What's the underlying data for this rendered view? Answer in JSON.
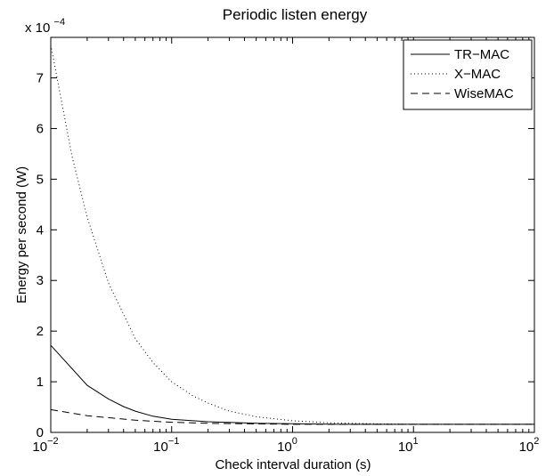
{
  "chart_data": {
    "type": "line",
    "title": "Periodic listen energy",
    "xlabel": "Check interval duration (s)",
    "ylabel": "Energy per second (W)",
    "x_scale": "log",
    "xlim": [
      0.01,
      100
    ],
    "ylim": [
      0,
      0.00078
    ],
    "y_multiplier_label": {
      "base": "x 10",
      "exponent": "−4"
    },
    "x_ticks": [
      {
        "value": 0.01,
        "base": "10",
        "exp": "−2"
      },
      {
        "value": 0.1,
        "base": "10",
        "exp": "−1"
      },
      {
        "value": 1,
        "base": "10",
        "exp": "0"
      },
      {
        "value": 10,
        "base": "10",
        "exp": "1"
      },
      {
        "value": 100,
        "base": "10",
        "exp": "2"
      }
    ],
    "y_ticks": [
      {
        "value": 0,
        "label": "0"
      },
      {
        "value": 0.0001,
        "label": "1"
      },
      {
        "value": 0.0002,
        "label": "2"
      },
      {
        "value": 0.0003,
        "label": "3"
      },
      {
        "value": 0.0004,
        "label": "4"
      },
      {
        "value": 0.0005,
        "label": "5"
      },
      {
        "value": 0.0006,
        "label": "6"
      },
      {
        "value": 0.0007,
        "label": "7"
      }
    ],
    "grid": false,
    "legend_position": "top-right",
    "series": [
      {
        "name": "TR−MAC",
        "style": "solid",
        "x": [
          0.01,
          0.02,
          0.03,
          0.04,
          0.05,
          0.07,
          0.1,
          0.2,
          0.5,
          1,
          2,
          5,
          10,
          100
        ],
        "y": [
          0.000172,
          9.3e-05,
          6.6e-05,
          5.1e-05,
          4.2e-05,
          3.2e-05,
          2.6e-05,
          2.1e-05,
          1.8e-05,
          1.7e-05,
          1.62e-05,
          1.6e-05,
          1.6e-05,
          1.6e-05
        ]
      },
      {
        "name": "X−MAC",
        "style": "dotted",
        "x": [
          0.01,
          0.015,
          0.02,
          0.03,
          0.05,
          0.07,
          0.1,
          0.15,
          0.2,
          0.3,
          0.5,
          1,
          2,
          5,
          10,
          100
        ],
        "y": [
          0.000765,
          0.000545,
          0.000425,
          0.000295,
          0.000185,
          0.000138,
          0.0001,
          7.2e-05,
          5.8e-05,
          4.2e-05,
          3.1e-05,
          2.3e-05,
          1.9e-05,
          1.68e-05,
          1.6e-05,
          1.6e-05
        ]
      },
      {
        "name": "WiseMAC",
        "style": "dashed",
        "x": [
          0.01,
          0.02,
          0.05,
          0.1,
          0.2,
          0.5,
          1,
          10,
          100
        ],
        "y": [
          4.5e-05,
          3.3e-05,
          2.4e-05,
          2e-05,
          1.8e-05,
          1.68e-05,
          1.6e-05,
          1.6e-05,
          1.6e-05
        ]
      }
    ]
  }
}
